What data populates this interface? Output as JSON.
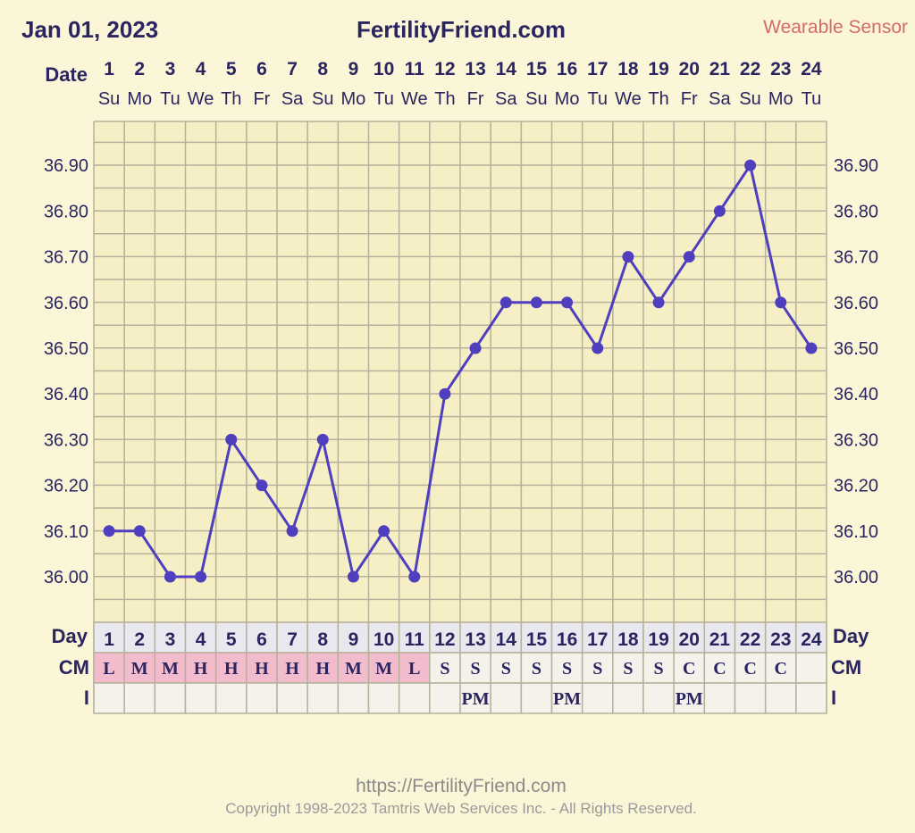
{
  "header": {
    "date": "Jan 01, 2023",
    "site": "FertilityFriend.com",
    "sensor": "Wearable Sensor"
  },
  "labels": {
    "date": "Date",
    "day": "Day",
    "cm": "CM",
    "i": "I"
  },
  "footer": {
    "url": "https://FertilityFriend.com",
    "copyright": "Copyright 1998-2023 Tamtris Web Services Inc. - All Rights Reserved."
  },
  "colors": {
    "line": "#4f3fbf",
    "grid": "#b5b19a",
    "cm_pink": "#f3bccd",
    "cm_light": "#f4f2ea",
    "day_row": "#e9e8ee"
  },
  "chart_data": {
    "type": "line",
    "dates": [
      "1",
      "2",
      "3",
      "4",
      "5",
      "6",
      "7",
      "8",
      "9",
      "10",
      "11",
      "12",
      "13",
      "14",
      "15",
      "16",
      "17",
      "18",
      "19",
      "20",
      "21",
      "22",
      "23",
      "24"
    ],
    "weekdays": [
      "Su",
      "Mo",
      "Tu",
      "We",
      "Th",
      "Fr",
      "Sa",
      "Su",
      "Mo",
      "Tu",
      "We",
      "Th",
      "Fr",
      "Sa",
      "Su",
      "Mo",
      "Tu",
      "We",
      "Th",
      "Fr",
      "Sa",
      "Su",
      "Mo",
      "Tu"
    ],
    "cycle_days": [
      "1",
      "2",
      "3",
      "4",
      "5",
      "6",
      "7",
      "8",
      "9",
      "10",
      "11",
      "12",
      "13",
      "14",
      "15",
      "16",
      "17",
      "18",
      "19",
      "20",
      "21",
      "22",
      "23",
      "24"
    ],
    "temperatures": [
      36.1,
      36.1,
      36.0,
      36.0,
      36.3,
      36.2,
      36.1,
      36.3,
      36.0,
      36.1,
      36.0,
      36.4,
      36.5,
      36.6,
      36.6,
      36.6,
      36.5,
      36.7,
      36.6,
      36.7,
      36.8,
      36.9,
      36.6,
      36.5
    ],
    "cm": [
      "L",
      "M",
      "M",
      "H",
      "H",
      "H",
      "H",
      "H",
      "M",
      "M",
      "L",
      "S",
      "S",
      "S",
      "S",
      "S",
      "S",
      "S",
      "S",
      "C",
      "C",
      "C",
      "C",
      ""
    ],
    "intercourse": [
      "",
      "",
      "",
      "",
      "",
      "",
      "",
      "",
      "",
      "",
      "",
      "",
      "PM",
      "",
      "",
      "PM",
      "",
      "",
      "",
      "PM",
      "",
      "",
      "",
      ""
    ],
    "ytick_labels": [
      "36.90",
      "36.80",
      "36.70",
      "36.60",
      "36.50",
      "36.40",
      "36.30",
      "36.20",
      "36.10",
      "36.00"
    ],
    "ylim": [
      35.9,
      37.0
    ],
    "grid": true
  }
}
